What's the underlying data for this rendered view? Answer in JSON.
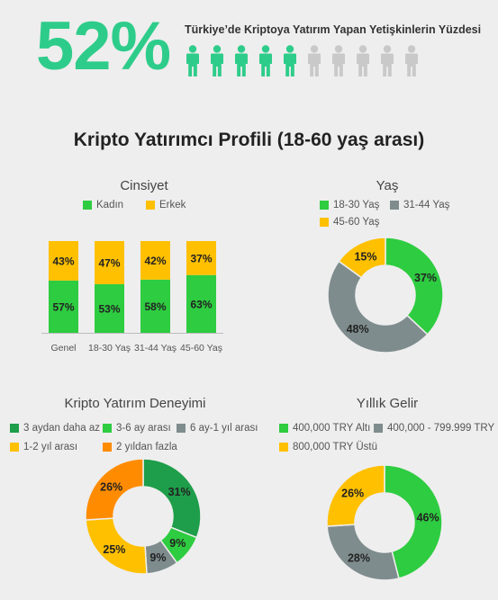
{
  "hero": {
    "percent": "52%",
    "title": "Türkiye’de Kriptoya Yatırım Yapan Yetişkinlerin Yüzdesi",
    "filled_icons": 5,
    "total_icons": 10,
    "filled_color": "#2ecc8a",
    "empty_color": "#c9c9c9"
  },
  "section_title": "Kripto Yatırımcı Profili (18-60 yaş arası)",
  "chart_data": [
    {
      "type": "bar",
      "stacked": true,
      "title": "Cinsiyet",
      "categories": [
        "Genel",
        "18-30 Yaş",
        "31-44 Yaş",
        "45-60 Yaş"
      ],
      "series": [
        {
          "name": "Kadın",
          "values": [
            57,
            53,
            58,
            63
          ],
          "labels": [
            "57%",
            "53%",
            "58%",
            "63%"
          ],
          "color": "#2ecc40"
        },
        {
          "name": "Erkek",
          "values": [
            43,
            47,
            42,
            37
          ],
          "labels": [
            "43%",
            "47%",
            "42%",
            "37%"
          ],
          "color": "#ffc000"
        }
      ],
      "ylim": [
        0,
        100
      ],
      "legend": "top"
    },
    {
      "type": "pie",
      "donut": true,
      "title": "Yaş",
      "labels": [
        "18-30 Yaş",
        "31-44 Yaş",
        "45-60 Yaş"
      ],
      "values": [
        37,
        48,
        15
      ],
      "value_labels": [
        "37%",
        "48%",
        "15%"
      ],
      "colors": [
        "#2ecc40",
        "#7f8c8d",
        "#ffc000"
      ],
      "legend": "top"
    },
    {
      "type": "pie",
      "donut": true,
      "title": "Kripto Yatırım Deneyimi",
      "labels": [
        "3 aydan daha az",
        "3-6 ay arası",
        "6 ay-1 yıl arası",
        "1-2 yıl arası",
        "2 yıldan fazla"
      ],
      "values": [
        31,
        9,
        9,
        25,
        26
      ],
      "value_labels": [
        "31%",
        "9%",
        "9%",
        "25%",
        "26%"
      ],
      "colors": [
        "#1e9e4a",
        "#2ecc40",
        "#7f8c8d",
        "#ffc000",
        "#ff8c00"
      ],
      "legend": "top"
    },
    {
      "type": "pie",
      "donut": true,
      "title": "Yıllık Gelir",
      "labels": [
        "400,000 TRY Altı",
        "400,000 - 799.999 TRY",
        "800,000 TRY Üstü"
      ],
      "values": [
        46,
        28,
        26
      ],
      "value_labels": [
        "46%",
        "28%",
        "26%"
      ],
      "colors": [
        "#2ecc40",
        "#7f8c8d",
        "#ffc000"
      ],
      "legend": "top"
    }
  ]
}
